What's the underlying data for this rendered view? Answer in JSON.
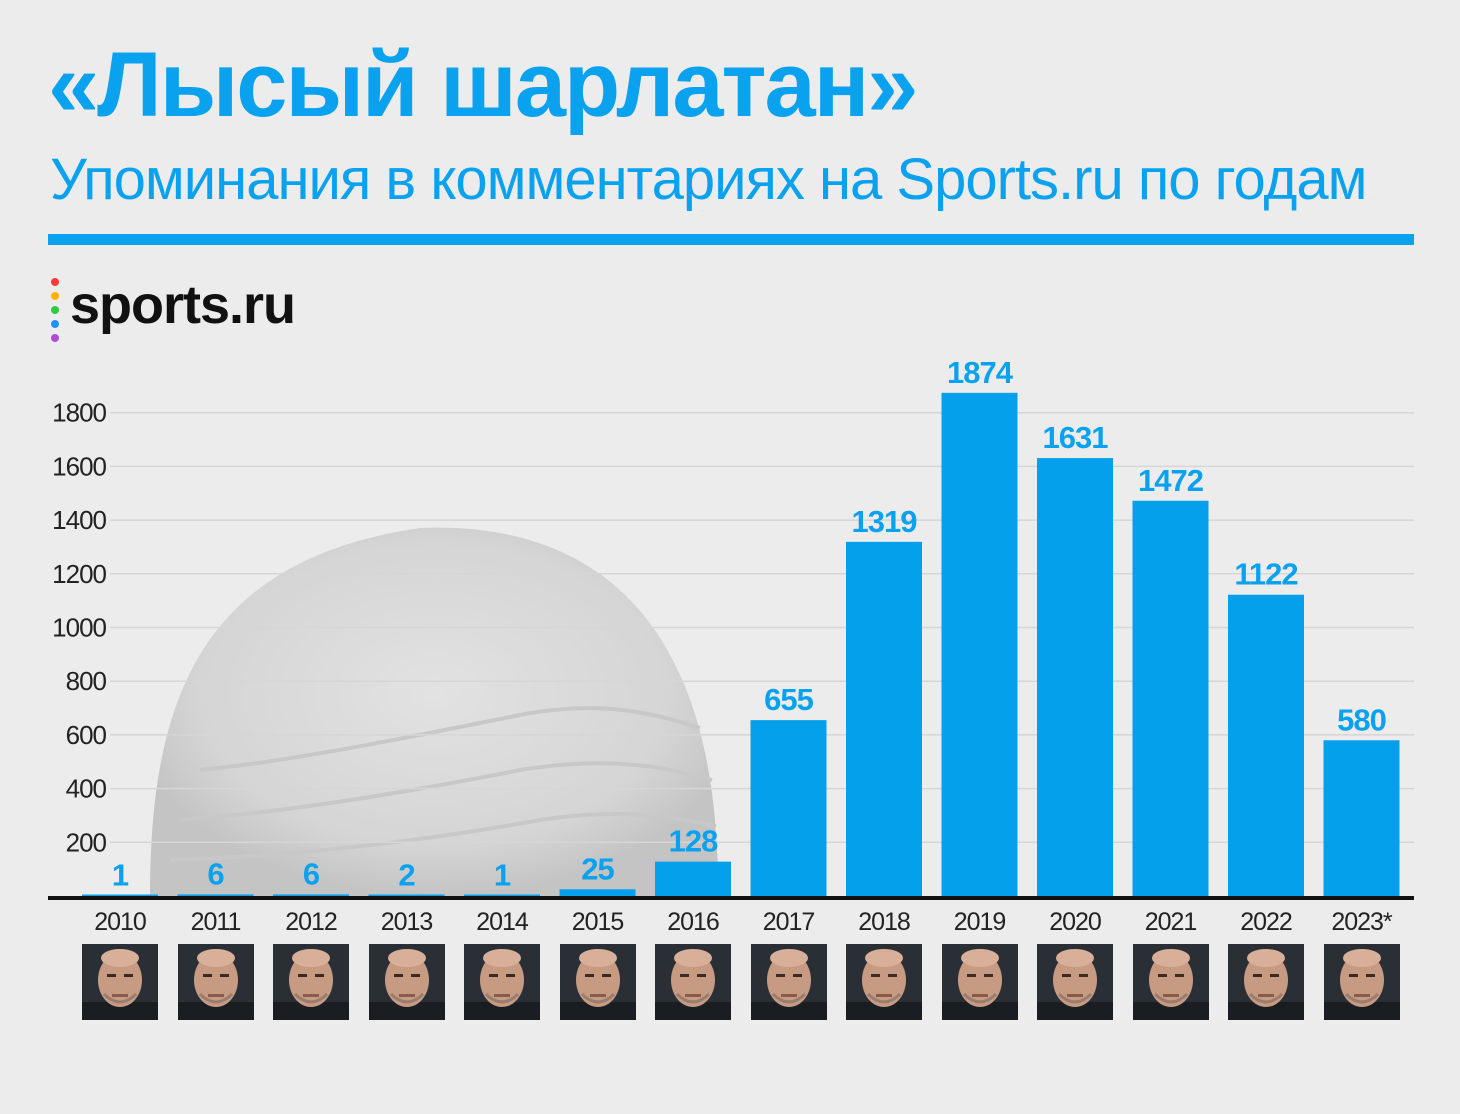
{
  "header": {
    "title": "«Лысый шарлатан»",
    "subtitle": "Упоминания в комментариях на Sports.ru по годам"
  },
  "logo": {
    "text": "sports.ru",
    "dot_colors": [
      "#ff3b3b",
      "#ffb300",
      "#2ecc40",
      "#1e90ff",
      "#b04bd6"
    ]
  },
  "colors": {
    "accent": "#0aa2ee",
    "bar": "#04a0ec",
    "label": "#0aa2ee",
    "axis_text": "#222222",
    "grid": "#d6d6d6",
    "baseline": "#111111"
  },
  "chart_data": {
    "type": "bar",
    "title": "«Лысый шарлатан»",
    "subtitle": "Упоминания в комментариях на Sports.ru по годам",
    "categories": [
      "2010",
      "2011",
      "2012",
      "2013",
      "2014",
      "2015",
      "2016",
      "2017",
      "2018",
      "2019",
      "2020",
      "2021",
      "2022",
      "2023*"
    ],
    "values": [
      1,
      6,
      6,
      2,
      1,
      25,
      128,
      655,
      1319,
      1874,
      1631,
      1472,
      1122,
      580
    ],
    "y_ticks": [
      200,
      400,
      600,
      800,
      1000,
      1200,
      1400,
      1600,
      1800
    ],
    "ylim": [
      0,
      1900
    ],
    "grid": true,
    "xlabel": "",
    "ylabel": ""
  },
  "faces": [
    {
      "year": "2010",
      "icon": "coach-portrait-icon"
    },
    {
      "year": "2011",
      "icon": "coach-portrait-icon"
    },
    {
      "year": "2012",
      "icon": "coach-portrait-icon"
    },
    {
      "year": "2013",
      "icon": "coach-portrait-icon"
    },
    {
      "year": "2014",
      "icon": "coach-portrait-icon"
    },
    {
      "year": "2015",
      "icon": "coach-portrait-icon"
    },
    {
      "year": "2016",
      "icon": "coach-portrait-icon"
    },
    {
      "year": "2017",
      "icon": "coach-portrait-icon"
    },
    {
      "year": "2018",
      "icon": "coach-portrait-icon"
    },
    {
      "year": "2019",
      "icon": "coach-portrait-icon"
    },
    {
      "year": "2020",
      "icon": "coach-portrait-icon"
    },
    {
      "year": "2021",
      "icon": "coach-portrait-icon"
    },
    {
      "year": "2022",
      "icon": "coach-portrait-icon"
    },
    {
      "year": "2023*",
      "icon": "coach-portrait-icon"
    }
  ]
}
